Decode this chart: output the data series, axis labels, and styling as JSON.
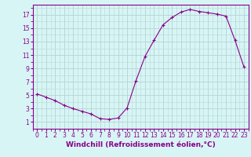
{
  "hours": [
    0,
    1,
    2,
    3,
    4,
    5,
    6,
    7,
    8,
    9,
    10,
    11,
    12,
    13,
    14,
    15,
    16,
    17,
    18,
    19,
    20,
    21,
    22,
    23
  ],
  "values": [
    5.2,
    4.7,
    4.2,
    3.5,
    3.0,
    2.6,
    2.2,
    1.5,
    1.4,
    1.6,
    3.1,
    7.2,
    10.8,
    13.2,
    15.5,
    16.6,
    17.4,
    17.8,
    17.5,
    17.3,
    17.1,
    16.8,
    13.2,
    9.2
  ],
  "line_color": "#880088",
  "marker": "+",
  "bg_color": "#d8f5f5",
  "grid_color": "#b8d8d8",
  "xlabel": "Windchill (Refroidissement éolien,°C)",
  "ylim": [
    0,
    18
  ],
  "xlim": [
    -0.5,
    23.5
  ],
  "yticks": [
    1,
    3,
    5,
    7,
    9,
    11,
    13,
    15,
    17
  ],
  "xticks": [
    0,
    1,
    2,
    3,
    4,
    5,
    6,
    7,
    8,
    9,
    10,
    11,
    12,
    13,
    14,
    15,
    16,
    17,
    18,
    19,
    20,
    21,
    22,
    23
  ],
  "tick_fontsize": 5.5,
  "xlabel_fontsize": 6.5
}
